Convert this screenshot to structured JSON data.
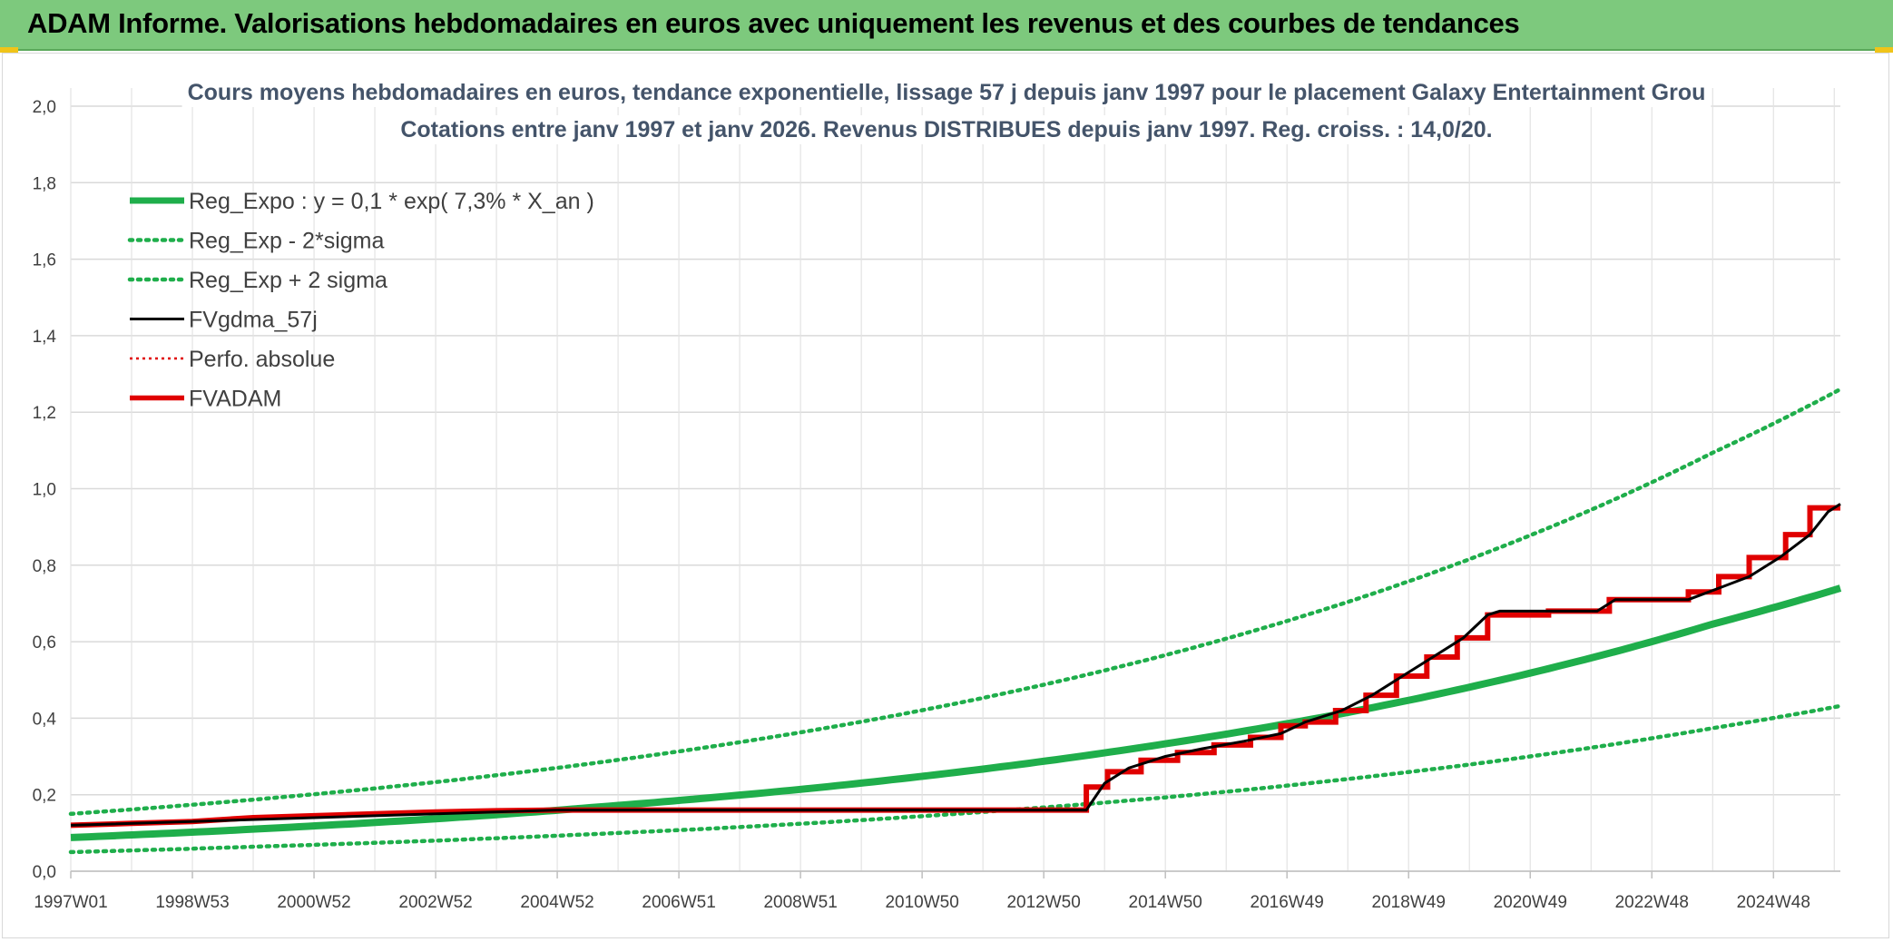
{
  "header": {
    "title": "ADAM Informe. Valorisations hebdomadaires en euros avec uniquement les revenus et des courbes de tendances"
  },
  "chart_data": {
    "type": "line",
    "title_line1": "Cours moyens hebdomadaires en euros, tendance exponentielle, lissage 57 j depuis janv 1997 pour le placement Galaxy Entertainment Grou",
    "title_line2": "Cotations entre janv 1997 et janv 2026. Revenus DISTRIBUES depuis janv 1997. Reg. croiss. : 14,0/20.",
    "xlabel": "",
    "ylabel": "",
    "ylim": [
      0,
      2.0
    ],
    "xlim": [
      1997.0,
      2026.1
    ],
    "grid": true,
    "legend_position": "top-left",
    "y_ticks": [
      "0,0",
      "0,2",
      "0,4",
      "0,6",
      "0,8",
      "1,0",
      "1,2",
      "1,4",
      "1,6",
      "1,8",
      "2,0"
    ],
    "x_ticks": [
      {
        "label": "1997W01",
        "x": 1997.0
      },
      {
        "label": "1998W53",
        "x": 1999.0
      },
      {
        "label": "2000W52",
        "x": 2001.0
      },
      {
        "label": "2002W52",
        "x": 2003.0
      },
      {
        "label": "2004W52",
        "x": 2005.0
      },
      {
        "label": "2006W51",
        "x": 2007.0
      },
      {
        "label": "2008W51",
        "x": 2009.0
      },
      {
        "label": "2010W50",
        "x": 2011.0
      },
      {
        "label": "2012W50",
        "x": 2013.0
      },
      {
        "label": "2014W50",
        "x": 2015.0
      },
      {
        "label": "2016W49",
        "x": 2017.0
      },
      {
        "label": "2018W49",
        "x": 2019.0
      },
      {
        "label": "2020W49",
        "x": 2021.0
      },
      {
        "label": "2022W48",
        "x": 2023.0
      },
      {
        "label": "2024W48",
        "x": 2025.0
      }
    ],
    "series": [
      {
        "name": "Reg_Expo : y = 0,1 * exp( 7,3% *  X_an )",
        "color": "#1fae4b",
        "style": "solid-thick",
        "points": [
          [
            1997.0,
            0.088
          ],
          [
            2000.0,
            0.11
          ],
          [
            2003.0,
            0.137
          ],
          [
            2006.0,
            0.172
          ],
          [
            2009.0,
            0.214
          ],
          [
            2012.0,
            0.267
          ],
          [
            2015.0,
            0.333
          ],
          [
            2018.0,
            0.415
          ],
          [
            2021.0,
            0.518
          ],
          [
            2024.0,
            0.646
          ],
          [
            2026.1,
            0.74
          ]
        ]
      },
      {
        "name": "Reg_Exp - 2*sigma",
        "color": "#1fae4b",
        "style": "dotted",
        "points": [
          [
            1997.0,
            0.05
          ],
          [
            2000.0,
            0.064
          ],
          [
            2003.0,
            0.08
          ],
          [
            2006.0,
            0.1
          ],
          [
            2009.0,
            0.124
          ],
          [
            2012.0,
            0.155
          ],
          [
            2015.0,
            0.193
          ],
          [
            2018.0,
            0.241
          ],
          [
            2021.0,
            0.3
          ],
          [
            2024.0,
            0.374
          ],
          [
            2026.1,
            0.432
          ]
        ]
      },
      {
        "name": "Reg_Exp + 2 sigma",
        "color": "#1fae4b",
        "style": "dotted",
        "points": [
          [
            1997.0,
            0.15
          ],
          [
            2000.0,
            0.187
          ],
          [
            2003.0,
            0.233
          ],
          [
            2006.0,
            0.291
          ],
          [
            2009.0,
            0.363
          ],
          [
            2012.0,
            0.453
          ],
          [
            2015.0,
            0.565
          ],
          [
            2018.0,
            0.704
          ],
          [
            2021.0,
            0.878
          ],
          [
            2024.0,
            1.094
          ],
          [
            2026.1,
            1.26
          ]
        ]
      },
      {
        "name": "FVgdma_57j",
        "color": "#000000",
        "style": "solid",
        "points": [
          [
            1997.0,
            0.12
          ],
          [
            2001.0,
            0.14
          ],
          [
            2005.0,
            0.16
          ],
          [
            2013.7,
            0.16
          ],
          [
            2014.0,
            0.23
          ],
          [
            2014.4,
            0.27
          ],
          [
            2015.0,
            0.3
          ],
          [
            2015.6,
            0.32
          ],
          [
            2016.3,
            0.34
          ],
          [
            2016.9,
            0.36
          ],
          [
            2017.3,
            0.39
          ],
          [
            2017.9,
            0.42
          ],
          [
            2018.4,
            0.46
          ],
          [
            2018.9,
            0.51
          ],
          [
            2019.4,
            0.56
          ],
          [
            2019.9,
            0.61
          ],
          [
            2020.3,
            0.67
          ],
          [
            2020.5,
            0.68
          ],
          [
            2022.1,
            0.68
          ],
          [
            2022.4,
            0.71
          ],
          [
            2023.6,
            0.71
          ],
          [
            2024.1,
            0.74
          ],
          [
            2024.6,
            0.77
          ],
          [
            2025.1,
            0.82
          ],
          [
            2025.6,
            0.88
          ],
          [
            2025.9,
            0.94
          ],
          [
            2026.1,
            0.96
          ]
        ]
      },
      {
        "name": "Perfo. absolue",
        "color": "#e00000",
        "style": "dotted-thin",
        "points": []
      },
      {
        "name": "FVADAM",
        "color": "#e00000",
        "style": "step",
        "points": [
          [
            1997.0,
            0.12
          ],
          [
            1998.0,
            0.125
          ],
          [
            1999.0,
            0.13
          ],
          [
            2000.0,
            0.14
          ],
          [
            2001.0,
            0.145
          ],
          [
            2002.0,
            0.15
          ],
          [
            2003.0,
            0.155
          ],
          [
            2004.0,
            0.158
          ],
          [
            2005.0,
            0.16
          ],
          [
            2013.7,
            0.16
          ],
          [
            2013.7,
            0.22
          ],
          [
            2014.05,
            0.22
          ],
          [
            2014.05,
            0.26
          ],
          [
            2014.6,
            0.26
          ],
          [
            2014.6,
            0.29
          ],
          [
            2015.2,
            0.29
          ],
          [
            2015.2,
            0.31
          ],
          [
            2015.8,
            0.31
          ],
          [
            2015.8,
            0.33
          ],
          [
            2016.4,
            0.33
          ],
          [
            2016.4,
            0.35
          ],
          [
            2016.9,
            0.35
          ],
          [
            2016.9,
            0.38
          ],
          [
            2017.3,
            0.38
          ],
          [
            2017.3,
            0.39
          ],
          [
            2017.8,
            0.39
          ],
          [
            2017.8,
            0.42
          ],
          [
            2018.3,
            0.42
          ],
          [
            2018.3,
            0.46
          ],
          [
            2018.8,
            0.46
          ],
          [
            2018.8,
            0.51
          ],
          [
            2019.3,
            0.51
          ],
          [
            2019.3,
            0.56
          ],
          [
            2019.8,
            0.56
          ],
          [
            2019.8,
            0.61
          ],
          [
            2020.3,
            0.61
          ],
          [
            2020.3,
            0.67
          ],
          [
            2021.3,
            0.67
          ],
          [
            2021.3,
            0.68
          ],
          [
            2022.3,
            0.68
          ],
          [
            2022.3,
            0.71
          ],
          [
            2023.6,
            0.71
          ],
          [
            2023.6,
            0.73
          ],
          [
            2024.1,
            0.73
          ],
          [
            2024.1,
            0.77
          ],
          [
            2024.6,
            0.77
          ],
          [
            2024.6,
            0.82
          ],
          [
            2025.2,
            0.82
          ],
          [
            2025.2,
            0.88
          ],
          [
            2025.6,
            0.88
          ],
          [
            2025.6,
            0.95
          ],
          [
            2026.1,
            0.95
          ]
        ]
      }
    ]
  }
}
